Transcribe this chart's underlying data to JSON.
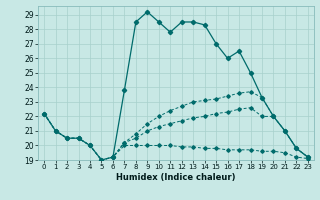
{
  "xlabel": "Humidex (Indice chaleur)",
  "bg_color": "#c8e8e5",
  "grid_color": "#a8d0cc",
  "line_color": "#006b6b",
  "ylim": [
    19,
    29.6
  ],
  "xlim": [
    -0.5,
    23.5
  ],
  "yticks": [
    19,
    20,
    21,
    22,
    23,
    24,
    25,
    26,
    27,
    28,
    29
  ],
  "xticks": [
    0,
    1,
    2,
    3,
    4,
    5,
    6,
    7,
    8,
    9,
    10,
    11,
    12,
    13,
    14,
    15,
    16,
    17,
    18,
    19,
    20,
    21,
    22,
    23
  ],
  "curve1_y": [
    22.2,
    21.0,
    20.5,
    20.5,
    20.0,
    19.0,
    19.2,
    23.8,
    28.5,
    29.2,
    28.5,
    27.8,
    28.5,
    28.5,
    28.3,
    27.0,
    26.0,
    26.5,
    25.0,
    23.3,
    22.0,
    21.0,
    19.8,
    19.2
  ],
  "curve2_y": [
    22.2,
    21.0,
    20.5,
    20.5,
    20.0,
    19.0,
    19.2,
    20.0,
    20.0,
    20.0,
    20.0,
    20.0,
    19.9,
    19.9,
    19.8,
    19.8,
    19.7,
    19.7,
    19.7,
    19.6,
    19.6,
    19.5,
    19.2,
    19.1
  ],
  "curve3_y": [
    22.2,
    21.0,
    20.5,
    20.5,
    20.0,
    19.0,
    19.2,
    20.2,
    20.5,
    21.0,
    21.3,
    21.5,
    21.7,
    21.9,
    22.0,
    22.2,
    22.3,
    22.5,
    22.6,
    22.0,
    22.0,
    21.0,
    19.8,
    19.2
  ],
  "curve4_y": [
    22.2,
    21.0,
    20.5,
    20.5,
    20.0,
    19.0,
    19.2,
    20.2,
    20.8,
    21.5,
    22.0,
    22.4,
    22.7,
    23.0,
    23.1,
    23.2,
    23.4,
    23.6,
    23.7,
    23.3,
    22.0,
    21.0,
    19.8,
    19.2
  ]
}
